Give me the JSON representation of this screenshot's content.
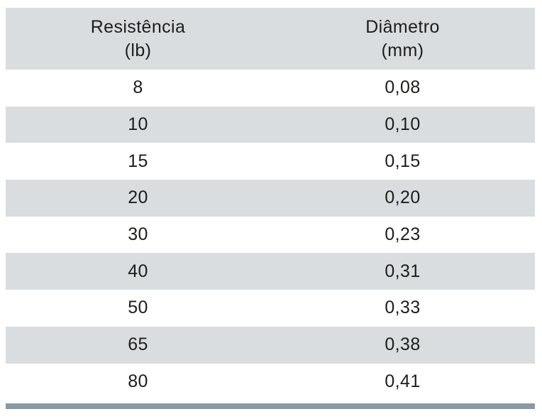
{
  "table": {
    "columns": [
      {
        "title": "Resistência",
        "unit": "(lb)"
      },
      {
        "title": "Diâmetro",
        "unit": "(mm)"
      }
    ],
    "rows": [
      {
        "resistance": "8",
        "diameter": "0,08"
      },
      {
        "resistance": "10",
        "diameter": "0,10"
      },
      {
        "resistance": "15",
        "diameter": "0,15"
      },
      {
        "resistance": "20",
        "diameter": "0,20"
      },
      {
        "resistance": "30",
        "diameter": "0,23"
      },
      {
        "resistance": "40",
        "diameter": "0,31"
      },
      {
        "resistance": "50",
        "diameter": "0,33"
      },
      {
        "resistance": "65",
        "diameter": "0,38"
      },
      {
        "resistance": "80",
        "diameter": "0,41"
      }
    ]
  },
  "colors": {
    "zebra_bg": "#d9dde0",
    "bottom_bar": "#8a99a4",
    "text": "#1d1d1b"
  }
}
